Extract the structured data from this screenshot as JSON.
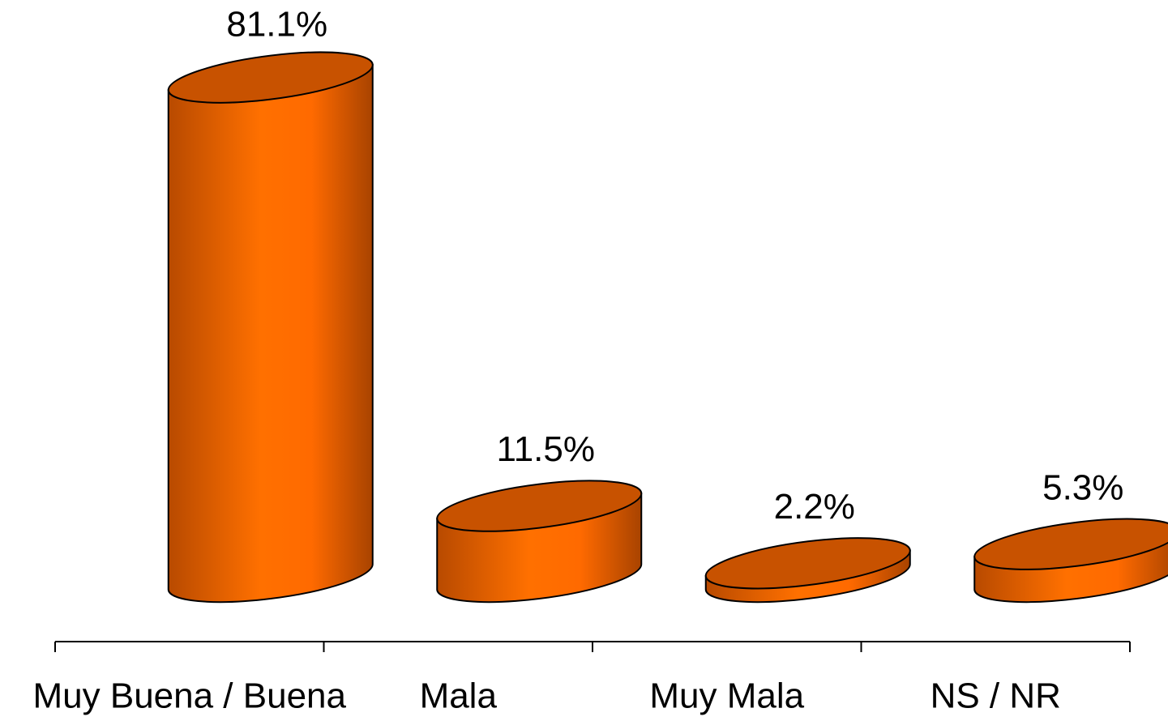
{
  "chart_data": {
    "type": "bar3d",
    "categories": [
      "Muy Buena / Buena",
      "Mala",
      "Muy Mala",
      "NS / NR"
    ],
    "values": [
      81.1,
      11.5,
      2.2,
      5.3
    ],
    "value_labels": [
      "81.1%",
      "11.5%",
      "2.2%",
      "5.3%"
    ],
    "color": "#ff6a00"
  }
}
